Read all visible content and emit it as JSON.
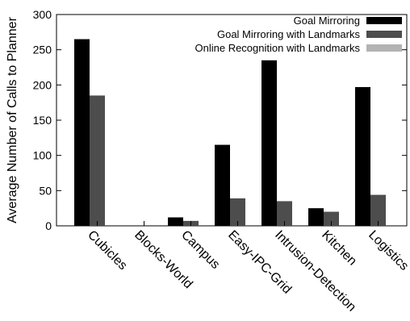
{
  "chart_data": {
    "type": "bar",
    "title": "",
    "xlabel": "",
    "ylabel": "Average Number of Calls to Planner",
    "ylim": [
      0,
      300
    ],
    "yticks": [
      0,
      50,
      100,
      150,
      200,
      250,
      300
    ],
    "grid": false,
    "legend_position": "top-right",
    "categories": [
      "Cubicles",
      "Blocks-World",
      "Campus",
      "Easy-IPC-Grid",
      "Intrusion-Detection",
      "Kitchen",
      "Logistics"
    ],
    "series": [
      {
        "name": "Goal Mirroring",
        "color": "#000000",
        "values": [
          265,
          0,
          12,
          115,
          235,
          25,
          197
        ]
      },
      {
        "name": "Goal Mirroring with Landmarks",
        "color": "#4d4d4d",
        "values": [
          185,
          0,
          7,
          39,
          35,
          20,
          44
        ]
      },
      {
        "name": "Online Recognition with Landmarks",
        "color": "#b3b3b3",
        "values": [
          0,
          0,
          0,
          0,
          0,
          0,
          0
        ]
      }
    ]
  }
}
